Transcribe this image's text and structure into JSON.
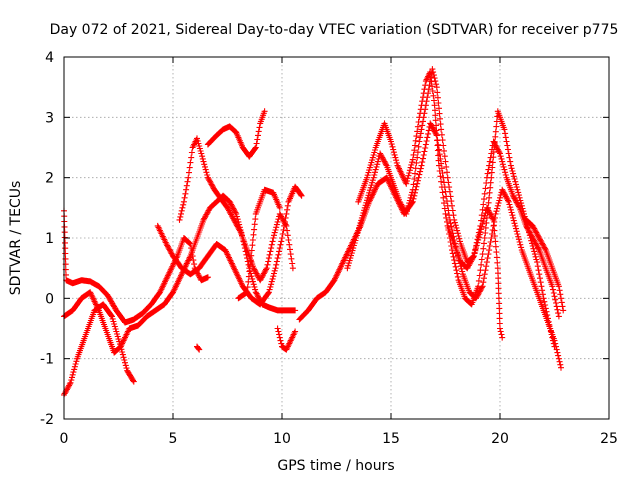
{
  "chart_data": {
    "type": "scatter",
    "title": "Day 072 of 2021, Sidereal Day-to-day VTEC variation (SDTVAR) for receiver p775",
    "xlabel": "GPS time / hours",
    "ylabel": "SDTVAR / TECUs",
    "xlim": [
      0,
      25
    ],
    "ylim": [
      -2,
      4
    ],
    "xticks": [
      0,
      5,
      10,
      15,
      20,
      25
    ],
    "yticks": [
      -2,
      -1,
      0,
      1,
      2,
      3,
      4
    ],
    "xtick_labels": [
      "0",
      "5",
      "10",
      "15",
      "20",
      "25"
    ],
    "ytick_labels": [
      "-2",
      "-1",
      "0",
      "1",
      "2",
      "3",
      "4"
    ],
    "grid": true,
    "marker": "+",
    "color": "#ff0000",
    "series": [
      {
        "name": "track-a",
        "points": [
          [
            0.0,
            1.45
          ],
          [
            0.1,
            0.3
          ],
          [
            0.4,
            0.25
          ],
          [
            0.8,
            0.3
          ],
          [
            1.2,
            0.28
          ],
          [
            1.6,
            0.2
          ],
          [
            2.0,
            0.05
          ],
          [
            2.4,
            -0.2
          ],
          [
            2.8,
            -0.4
          ],
          [
            3.2,
            -0.35
          ],
          [
            3.6,
            -0.25
          ],
          [
            4.0,
            -0.1
          ],
          [
            4.4,
            0.1
          ],
          [
            4.8,
            0.4
          ],
          [
            5.2,
            0.7
          ],
          [
            5.5,
            1.0
          ],
          [
            5.8,
            0.9
          ],
          [
            6.0,
            0.5
          ],
          [
            6.3,
            0.3
          ],
          [
            6.6,
            0.35
          ]
        ]
      },
      {
        "name": "track-b",
        "points": [
          [
            0.0,
            -1.6
          ],
          [
            0.3,
            -1.4
          ],
          [
            0.6,
            -1.0
          ],
          [
            1.0,
            -0.6
          ],
          [
            1.4,
            -0.2
          ],
          [
            1.8,
            -0.1
          ],
          [
            2.2,
            -0.3
          ],
          [
            2.6,
            -0.8
          ],
          [
            2.9,
            -1.2
          ],
          [
            3.2,
            -1.38
          ]
        ]
      },
      {
        "name": "track-c",
        "points": [
          [
            0.0,
            -0.3
          ],
          [
            0.4,
            -0.2
          ],
          [
            0.8,
            0.0
          ],
          [
            1.2,
            0.1
          ],
          [
            1.6,
            -0.2
          ],
          [
            2.0,
            -0.6
          ],
          [
            2.3,
            -0.9
          ],
          [
            2.6,
            -0.8
          ],
          [
            3.0,
            -0.5
          ],
          [
            3.4,
            -0.45
          ],
          [
            3.8,
            -0.3
          ],
          [
            4.2,
            -0.2
          ],
          [
            4.6,
            -0.1
          ],
          [
            5.0,
            0.1
          ],
          [
            5.4,
            0.4
          ],
          [
            5.8,
            0.7
          ],
          [
            6.1,
            1.0
          ],
          [
            6.4,
            1.3
          ],
          [
            6.7,
            1.5
          ],
          [
            7.0,
            1.6
          ],
          [
            7.3,
            1.7
          ],
          [
            7.6,
            1.6
          ],
          [
            7.9,
            1.4
          ],
          [
            8.2,
            1.0
          ],
          [
            8.5,
            0.5
          ],
          [
            8.8,
            0.1
          ],
          [
            9.1,
            -0.1
          ],
          [
            9.4,
            -0.15
          ],
          [
            9.8,
            -0.2
          ],
          [
            10.2,
            -0.2
          ],
          [
            10.6,
            -0.2
          ]
        ]
      },
      {
        "name": "track-d",
        "points": [
          [
            4.3,
            1.2
          ],
          [
            4.7,
            0.9
          ],
          [
            5.0,
            0.7
          ],
          [
            5.4,
            0.5
          ],
          [
            5.8,
            0.4
          ],
          [
            6.2,
            0.5
          ],
          [
            6.6,
            0.7
          ],
          [
            7.0,
            0.9
          ],
          [
            7.4,
            0.8
          ],
          [
            7.8,
            0.5
          ],
          [
            8.2,
            0.2
          ],
          [
            8.6,
            0.0
          ],
          [
            9.0,
            -0.1
          ],
          [
            9.4,
            0.1
          ],
          [
            9.7,
            0.5
          ],
          [
            10.0,
            1.0
          ],
          [
            10.3,
            1.6
          ],
          [
            10.6,
            1.85
          ],
          [
            10.9,
            1.7
          ]
        ]
      },
      {
        "name": "track-e",
        "points": [
          [
            5.3,
            1.3
          ],
          [
            5.5,
            1.6
          ],
          [
            5.7,
            2.0
          ],
          [
            5.9,
            2.5
          ],
          [
            6.1,
            2.65
          ],
          [
            6.3,
            2.4
          ],
          [
            6.6,
            2.0
          ],
          [
            6.9,
            1.8
          ],
          [
            7.2,
            1.65
          ],
          [
            7.5,
            1.5
          ],
          [
            7.8,
            1.3
          ],
          [
            8.1,
            1.1
          ],
          [
            8.4,
            0.8
          ],
          [
            8.7,
            0.5
          ],
          [
            9.0,
            0.3
          ],
          [
            9.3,
            0.5
          ],
          [
            9.6,
            1.0
          ],
          [
            9.9,
            1.4
          ],
          [
            10.2,
            1.2
          ],
          [
            10.5,
            0.5
          ]
        ]
      },
      {
        "name": "track-f",
        "points": [
          [
            6.6,
            2.55
          ],
          [
            7.0,
            2.7
          ],
          [
            7.3,
            2.8
          ],
          [
            7.6,
            2.85
          ],
          [
            7.9,
            2.75
          ],
          [
            8.2,
            2.5
          ],
          [
            8.5,
            2.35
          ],
          [
            8.8,
            2.5
          ],
          [
            9.0,
            2.9
          ],
          [
            9.2,
            3.1
          ]
        ]
      },
      {
        "name": "track-g",
        "points": [
          [
            6.1,
            -0.8
          ],
          [
            6.2,
            -0.85
          ]
        ]
      },
      {
        "name": "track-h",
        "points": [
          [
            8.0,
            0.0
          ],
          [
            8.4,
            0.1
          ],
          [
            8.8,
            1.4
          ],
          [
            9.2,
            1.8
          ],
          [
            9.6,
            1.75
          ],
          [
            9.9,
            1.5
          ]
        ]
      },
      {
        "name": "track-i",
        "points": [
          [
            9.8,
            -0.5
          ],
          [
            10.0,
            -0.8
          ],
          [
            10.2,
            -0.85
          ],
          [
            10.4,
            -0.7
          ],
          [
            10.6,
            -0.55
          ]
        ]
      },
      {
        "name": "track-j",
        "points": [
          [
            10.8,
            -0.35
          ],
          [
            11.2,
            -0.2
          ],
          [
            11.6,
            0.0
          ],
          [
            12.0,
            0.1
          ],
          [
            12.4,
            0.3
          ],
          [
            12.8,
            0.6
          ],
          [
            13.2,
            0.9
          ],
          [
            13.6,
            1.2
          ],
          [
            14.0,
            1.6
          ],
          [
            14.4,
            1.9
          ],
          [
            14.8,
            2.0
          ],
          [
            15.2,
            1.7
          ],
          [
            15.6,
            1.4
          ],
          [
            16.0,
            1.6
          ],
          [
            16.4,
            2.2
          ],
          [
            16.8,
            2.9
          ],
          [
            17.1,
            2.7
          ],
          [
            17.4,
            2.0
          ],
          [
            17.7,
            1.3
          ],
          [
            18.0,
            0.8
          ],
          [
            18.3,
            0.4
          ],
          [
            18.6,
            0.1
          ],
          [
            18.9,
            0.0
          ],
          [
            19.2,
            0.2
          ],
          [
            19.5,
            0.8
          ],
          [
            19.8,
            1.4
          ],
          [
            20.1,
            1.8
          ],
          [
            20.4,
            1.6
          ],
          [
            20.7,
            1.2
          ],
          [
            21.0,
            0.8
          ],
          [
            21.3,
            0.5
          ],
          [
            21.6,
            0.2
          ],
          [
            21.9,
            -0.1
          ],
          [
            22.2,
            -0.4
          ],
          [
            22.5,
            -0.7
          ],
          [
            22.7,
            -1.0
          ],
          [
            22.8,
            -1.15
          ]
        ]
      },
      {
        "name": "track-k",
        "points": [
          [
            13.0,
            0.5
          ],
          [
            13.4,
            1.0
          ],
          [
            13.8,
            1.5
          ],
          [
            14.2,
            2.0
          ],
          [
            14.5,
            2.4
          ],
          [
            14.8,
            2.2
          ],
          [
            15.1,
            1.9
          ],
          [
            15.4,
            1.6
          ],
          [
            15.7,
            1.4
          ],
          [
            16.0,
            1.8
          ],
          [
            16.3,
            2.6
          ],
          [
            16.6,
            3.2
          ],
          [
            16.9,
            3.8
          ],
          [
            17.1,
            3.5
          ],
          [
            17.3,
            2.8
          ],
          [
            17.6,
            2.0
          ],
          [
            17.9,
            1.3
          ],
          [
            18.2,
            0.9
          ],
          [
            18.5,
            0.6
          ],
          [
            18.8,
            0.7
          ],
          [
            19.1,
            1.2
          ],
          [
            19.4,
            2.0
          ],
          [
            19.7,
            2.6
          ],
          [
            20.0,
            2.4
          ],
          [
            20.3,
            2.0
          ],
          [
            20.6,
            1.7
          ],
          [
            20.9,
            1.5
          ],
          [
            21.2,
            1.2
          ],
          [
            21.5,
            1.0
          ],
          [
            21.8,
            0.8
          ],
          [
            22.1,
            0.5
          ],
          [
            22.4,
            0.2
          ],
          [
            22.7,
            -0.3
          ]
        ]
      },
      {
        "name": "track-l",
        "points": [
          [
            13.5,
            1.6
          ],
          [
            13.9,
            2.0
          ],
          [
            14.3,
            2.5
          ],
          [
            14.7,
            2.9
          ],
          [
            15.0,
            2.6
          ],
          [
            15.3,
            2.2
          ],
          [
            15.7,
            1.9
          ],
          [
            16.0,
            2.3
          ],
          [
            16.3,
            3.0
          ],
          [
            16.6,
            3.6
          ],
          [
            16.8,
            3.75
          ],
          [
            17.0,
            3.2
          ],
          [
            17.2,
            2.2
          ],
          [
            17.5,
            1.4
          ],
          [
            17.8,
            0.8
          ],
          [
            18.1,
            0.3
          ],
          [
            18.4,
            0.0
          ],
          [
            18.7,
            -0.1
          ],
          [
            19.0,
            0.2
          ],
          [
            19.3,
            1.0
          ],
          [
            19.6,
            2.0
          ],
          [
            19.9,
            3.1
          ],
          [
            20.2,
            2.8
          ],
          [
            20.5,
            2.2
          ],
          [
            20.8,
            1.8
          ],
          [
            21.1,
            1.4
          ],
          [
            21.4,
            1.0
          ],
          [
            21.7,
            0.6
          ],
          [
            22.0,
            0.0
          ],
          [
            22.3,
            -0.5
          ],
          [
            22.5,
            -0.8
          ]
        ]
      },
      {
        "name": "track-m",
        "points": [
          [
            17.6,
            1.2
          ],
          [
            17.9,
            0.9
          ],
          [
            18.2,
            0.6
          ],
          [
            18.5,
            0.5
          ],
          [
            18.8,
            0.7
          ],
          [
            19.1,
            1.1
          ],
          [
            19.4,
            1.5
          ],
          [
            19.7,
            1.3
          ],
          [
            19.9,
            0.5
          ],
          [
            20.0,
            -0.5
          ],
          [
            20.1,
            -0.65
          ]
        ]
      },
      {
        "name": "track-n",
        "points": [
          [
            21.2,
            1.3
          ],
          [
            21.5,
            1.2
          ],
          [
            21.8,
            1.0
          ],
          [
            22.1,
            0.8
          ],
          [
            22.4,
            0.5
          ],
          [
            22.7,
            0.2
          ],
          [
            22.9,
            -0.2
          ]
        ]
      }
    ]
  }
}
